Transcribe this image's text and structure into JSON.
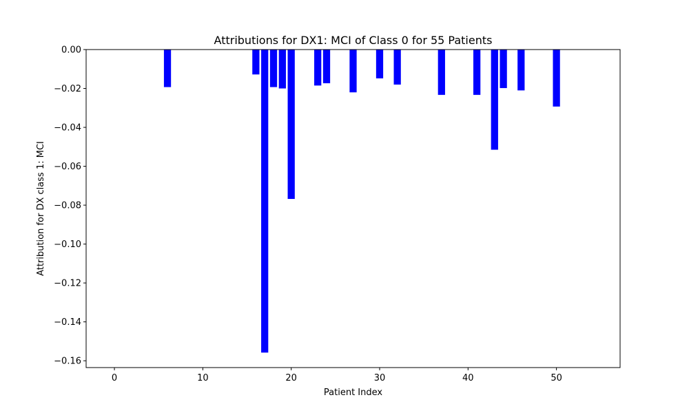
{
  "chart_data": {
    "type": "bar",
    "title": "Attributions for DX1: MCI of Class 0 for 55 Patients",
    "xlabel": "Patient Index",
    "ylabel": "Attribution for DX class 1: MCI",
    "xlim": [
      -3.2,
      57.2
    ],
    "ylim": [
      -0.1635,
      0.0
    ],
    "xticks": [
      0,
      10,
      20,
      30,
      40,
      50
    ],
    "yticks": [
      0.0,
      -0.02,
      -0.04,
      -0.06,
      -0.08,
      -0.1,
      -0.12,
      -0.14,
      -0.16
    ],
    "xtick_labels": [
      "0",
      "10",
      "20",
      "30",
      "40",
      "50"
    ],
    "ytick_labels": [
      "0.00",
      "−0.02",
      "−0.04",
      "−0.06",
      "−0.08",
      "−0.10",
      "−0.12",
      "−0.14",
      "−0.16"
    ],
    "grid": false,
    "bar_color": "#0000ff",
    "bar_width": 0.8,
    "x": [
      6,
      16,
      17,
      18,
      19,
      20,
      23,
      24,
      27,
      30,
      32,
      37,
      41,
      43,
      44,
      46,
      50
    ],
    "values": [
      -0.0193,
      -0.0128,
      -0.1558,
      -0.0193,
      -0.02,
      -0.0768,
      -0.0185,
      -0.0173,
      -0.022,
      -0.0148,
      -0.018,
      -0.0233,
      -0.0233,
      -0.0515,
      -0.0198,
      -0.021,
      -0.0293
    ]
  }
}
